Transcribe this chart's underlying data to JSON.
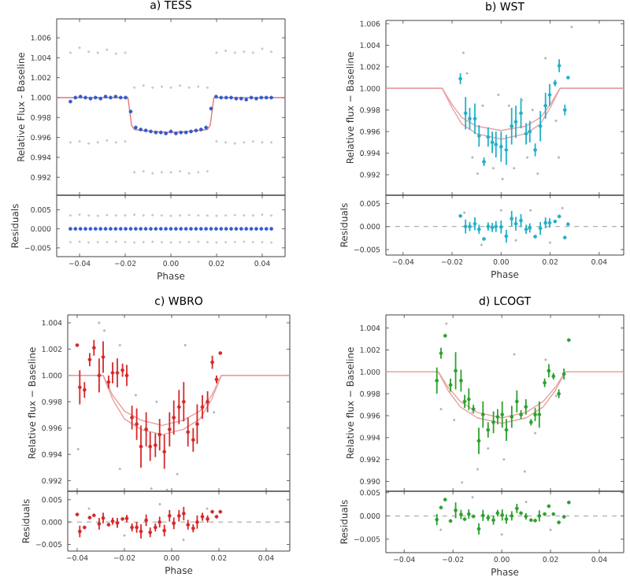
{
  "chart_data": [
    {
      "type": "scatter",
      "title": "a) TESS",
      "ylabel": "Relative Flux - Baseline",
      "tick_labels": "y",
      "xlim": [
        -0.05,
        0.05
      ],
      "ylim": [
        0.9902,
        1.0079
      ],
      "xticks": [
        {
          "value": -0.04,
          "label": null
        },
        {
          "value": -0.02,
          "label": null
        },
        {
          "value": 0,
          "label": null
        },
        {
          "value": 0.02,
          "label": null
        },
        {
          "value": 0.04,
          "label": null
        }
      ],
      "yticks": [
        {
          "value": 0.992,
          "label": "0.992"
        },
        {
          "value": 0.994,
          "label": "0.994"
        },
        {
          "value": 0.996,
          "label": "0.996"
        },
        {
          "value": 0.998,
          "label": "0.998"
        },
        {
          "value": 1.0,
          "label": "1.000"
        },
        {
          "value": 1.002,
          "label": "1.002"
        },
        {
          "value": 1.004,
          "label": "1.004"
        },
        {
          "value": 1.006,
          "label": "1.006"
        }
      ],
      "series": [
        {
          "color": "#c8c8c8",
          "x": [
            -0.044,
            -0.044,
            -0.04,
            -0.04,
            -0.036,
            -0.036,
            -0.032,
            -0.032,
            -0.028,
            -0.028,
            -0.024,
            -0.024,
            -0.02,
            -0.02,
            -0.016,
            -0.016,
            -0.012,
            -0.012,
            -0.008,
            -0.008,
            -0.004,
            -0.004,
            0.0,
            0.0,
            0.004,
            0.004,
            0.008,
            0.008,
            0.012,
            0.012,
            0.016,
            0.016,
            0.02,
            0.02,
            0.024,
            0.024,
            0.028,
            0.028,
            0.032,
            0.032,
            0.036,
            0.036,
            0.04,
            0.04,
            0.044,
            0.044
          ],
          "values": [
            1.0045,
            0.9955,
            1.005,
            0.9956,
            1.0046,
            0.9954,
            1.0045,
            0.9955,
            1.0048,
            0.9957,
            1.0044,
            0.9955,
            1.0045,
            0.9956,
            1.001,
            0.9925,
            1.0012,
            0.9926,
            1.001,
            0.9924,
            1.0011,
            0.9925,
            1.001,
            0.9925,
            1.0012,
            0.9926,
            1.001,
            0.9924,
            1.0011,
            0.9925,
            1.001,
            0.9926,
            1.0045,
            0.9956,
            1.0047,
            0.9955,
            1.0045,
            0.9954,
            1.0046,
            0.9955,
            1.0045,
            0.9956,
            1.0049,
            0.9955,
            1.0046,
            0.9955
          ]
        },
        {
          "type": "line",
          "marker": "none",
          "color": "#e07878",
          "x": [
            -0.05,
            -0.0188,
            -0.0172,
            -0.016,
            -0.008,
            0,
            0.008,
            0.016,
            0.0172,
            0.0188,
            0.05
          ],
          "values": [
            1.0,
            1.0,
            0.9972,
            0.9968,
            0.9966,
            0.9965,
            0.9966,
            0.9968,
            0.9972,
            1.0,
            1.0
          ]
        },
        {
          "color": "#2f5bd0",
          "x": [
            -0.044,
            -0.0418,
            -0.0396,
            -0.0374,
            -0.0352,
            -0.033,
            -0.0308,
            -0.0286,
            -0.0264,
            -0.0242,
            -0.022,
            -0.0198,
            -0.0176,
            -0.0154,
            -0.0132,
            -0.011,
            -0.0088,
            -0.0066,
            -0.0044,
            -0.0022,
            0,
            0.0022,
            0.0044,
            0.0066,
            0.0088,
            0.011,
            0.0132,
            0.0154,
            0.0176,
            0.0198,
            0.022,
            0.0242,
            0.0264,
            0.0286,
            0.0308,
            0.033,
            0.0352,
            0.0374,
            0.0396,
            0.0418,
            0.044
          ],
          "values": [
            0.9996,
            1.0,
            1.0001,
            1.0,
            0.9999,
            1.0,
            0.9999,
            1.0001,
            1.0,
            1.0001,
            1.0,
            1.0,
            0.9986,
            0.997,
            0.9968,
            0.9967,
            0.9966,
            0.9965,
            0.9965,
            0.9964,
            0.9966,
            0.9964,
            0.9965,
            0.9965,
            0.9966,
            0.9967,
            0.9968,
            0.997,
            0.9989,
            1.0001,
            1.0,
            1.0,
            1.0,
            0.9999,
            0.9999,
            0.9998,
            1.0,
            0.9999,
            1.0,
            1.0,
            1.0
          ]
        }
      ]
    },
    {
      "type": "scatter",
      "xlabel": "Phase",
      "ylabel": "Residuals",
      "xlim": [
        -0.05,
        0.05
      ],
      "ylim": [
        -0.0073,
        0.0088
      ],
      "xticks": [
        {
          "value": -0.04,
          "label": "−0.04"
        },
        {
          "value": -0.02,
          "label": "−0.02"
        },
        {
          "value": 0,
          "label": "0.00"
        },
        {
          "value": 0.02,
          "label": "0.02"
        },
        {
          "value": 0.04,
          "label": "0.04"
        }
      ],
      "yticks": [
        {
          "value": -0.005,
          "label": "−0.005"
        },
        {
          "value": 0,
          "label": "0.000"
        },
        {
          "value": 0.005,
          "label": "0.005"
        }
      ],
      "series": [
        {
          "color": "#c8c8c8",
          "x": [
            -0.044,
            -0.044,
            -0.04,
            -0.04,
            -0.036,
            -0.036,
            -0.032,
            -0.032,
            -0.028,
            -0.028,
            -0.024,
            -0.024,
            -0.02,
            -0.02,
            -0.016,
            -0.016,
            -0.012,
            -0.012,
            -0.008,
            -0.008,
            -0.004,
            -0.004,
            0.0,
            0.0,
            0.004,
            0.004,
            0.008,
            0.008,
            0.012,
            0.012,
            0.016,
            0.016,
            0.02,
            0.02,
            0.024,
            0.024,
            0.028,
            0.028,
            0.032,
            0.032,
            0.036,
            0.036,
            0.04,
            0.04,
            0.044,
            0.044
          ],
          "values": [
            0.0035,
            -0.0035,
            0.0037,
            -0.0034,
            0.0035,
            -0.0036,
            0.0034,
            -0.0035,
            0.0036,
            -0.0035,
            0.0035,
            -0.0034,
            0.0035,
            -0.0035,
            0.0037,
            -0.0036,
            0.0035,
            -0.0035,
            0.0036,
            -0.0034,
            0.0035,
            -0.0035,
            0.0034,
            -0.0036,
            0.0035,
            -0.0035,
            0.0036,
            -0.0035,
            0.0035,
            -0.0034,
            0.0035,
            -0.0035,
            0.0034,
            -0.0036,
            0.0035,
            -0.0035,
            0.0036,
            -0.0035,
            0.0035,
            -0.0034,
            0.0035,
            -0.0035,
            0.0037,
            -0.0035,
            0.0035,
            -0.0036
          ]
        },
        {
          "color": "#2f5bd0",
          "x": [
            -0.044,
            -0.0418,
            -0.0396,
            -0.0374,
            -0.0352,
            -0.033,
            -0.0308,
            -0.0286,
            -0.0264,
            -0.0242,
            -0.022,
            -0.0198,
            -0.0176,
            -0.0154,
            -0.0132,
            -0.011,
            -0.0088,
            -0.0066,
            -0.0044,
            -0.0022,
            0,
            0.0022,
            0.0044,
            0.0066,
            0.0088,
            0.011,
            0.0132,
            0.0154,
            0.0176,
            0.0198,
            0.022,
            0.0242,
            0.0264,
            0.0286,
            0.0308,
            0.033,
            0.0352,
            0.0374,
            0.0396,
            0.0418,
            0.044
          ],
          "values": [
            0,
            0,
            0,
            0,
            0,
            0,
            0,
            0,
            0,
            0,
            0,
            0,
            0,
            0,
            0,
            0,
            0,
            0,
            0,
            0,
            0,
            0,
            0,
            0,
            0,
            0,
            0,
            0,
            0,
            0,
            0,
            0,
            0,
            0,
            0,
            0,
            0,
            0,
            0,
            0,
            0
          ]
        }
      ]
    },
    {
      "type": "scatter",
      "title": "b) WST",
      "ylabel": "Relative flux − Baseline",
      "tick_labels": "y",
      "xlim": [
        -0.047,
        0.05
      ],
      "ylim": [
        0.9901,
        1.0063
      ],
      "xticks": [
        {
          "value": -0.04,
          "label": null
        },
        {
          "value": -0.02,
          "label": null
        },
        {
          "value": 0,
          "label": null
        },
        {
          "value": 0.02,
          "label": null
        },
        {
          "value": 0.04,
          "label": null
        }
      ],
      "yticks": [
        {
          "value": 0.992,
          "label": "0.992"
        },
        {
          "value": 0.994,
          "label": "0.994"
        },
        {
          "value": 0.996,
          "label": "0.996"
        },
        {
          "value": 0.998,
          "label": "0.998"
        },
        {
          "value": 1.0,
          "label": "1.000"
        },
        {
          "value": 1.002,
          "label": "1.002"
        },
        {
          "value": 1.004,
          "label": "1.004"
        },
        {
          "value": 1.006,
          "label": "1.006"
        }
      ],
      "series": [
        {
          "color": "#b4b4b4",
          "x": [
            -0.0154,
            -0.0139,
            -0.0117,
            -0.0096,
            -0.0075,
            -0.0032,
            -0.0011,
            0.0006,
            0.0032,
            0.0053,
            0.0085,
            0.0107,
            0.0128,
            0.0149,
            0.0181,
            0.0224,
            0.0235,
            0.0288
          ],
          "values": [
            1.0033,
            1.0014,
            0.9936,
            0.9921,
            0.9984,
            0.9926,
            0.9994,
            0.9916,
            0.9984,
            0.9926,
            0.9989,
            0.9936,
            0.998,
            0.9921,
            1.0028,
            0.997,
            0.9936,
            1.0057
          ]
        },
        {
          "type": "line",
          "marker": "none",
          "color": "#e8a0a0",
          "x": [
            -0.047,
            -0.024,
            -0.02,
            -0.016,
            -0.01,
            0,
            0.01,
            0.016,
            0.02,
            0.024,
            0.05
          ],
          "values": [
            1.0,
            1.0,
            0.9985,
            0.9973,
            0.9965,
            0.9961,
            0.9965,
            0.9973,
            0.9985,
            1.0,
            1.0
          ]
        },
        {
          "type": "line",
          "marker": "none",
          "color": "#e8a0a0",
          "x": [
            -0.047,
            -0.024,
            -0.02,
            -0.016,
            -0.01,
            0,
            0.01,
            0.016,
            0.02,
            0.024,
            0.05
          ],
          "values": [
            1.0,
            1.0,
            0.9982,
            0.9967,
            0.9958,
            0.9953,
            0.9958,
            0.9967,
            0.9982,
            1.0,
            1.0
          ]
        },
        {
          "color": "#1fb0c8",
          "x": [
            -0.0166,
            -0.0145,
            -0.0128,
            -0.0107,
            -0.009,
            -0.007,
            -0.0053,
            -0.0036,
            -0.0021,
            0.0,
            0.0021,
            0.0043,
            0.006,
            0.0081,
            0.0102,
            0.0117,
            0.0139,
            0.016,
            0.0181,
            0.0198,
            0.022,
            0.0237,
            0.026,
            0.0273
          ],
          "values": [
            1.0009,
            0.9977,
            0.9972,
            0.9972,
            0.9956,
            0.9932,
            0.9955,
            0.995,
            0.9948,
            0.9946,
            0.9943,
            0.9965,
            0.9969,
            0.9977,
            0.9958,
            0.996,
            0.9943,
            0.9965,
            0.9984,
            0.9994,
            1.0005,
            1.0021,
            0.998,
            1.001
          ],
          "errors": [
            0.0005,
            0.0015,
            0.001,
            0.0014,
            0.001,
            0.0004,
            0.0009,
            0.001,
            0.0012,
            0.0014,
            0.0014,
            0.0017,
            0.0015,
            0.0014,
            0.001,
            0.001,
            0.0006,
            0.0014,
            0.0012,
            0.001,
            0.0003,
            0.0006,
            0.0005,
            null
          ]
        }
      ]
    },
    {
      "type": "scatter",
      "xlabel": "Phase",
      "ylabel": "Residuals",
      "xlim": [
        -0.047,
        0.05
      ],
      "ylim": [
        -0.0062,
        0.0068
      ],
      "xticks": [
        {
          "value": -0.04,
          "label": "−0.04"
        },
        {
          "value": -0.02,
          "label": "−0.02"
        },
        {
          "value": 0,
          "label": "0.00"
        },
        {
          "value": 0.02,
          "label": "0.02"
        },
        {
          "value": 0.04,
          "label": "0.04"
        }
      ],
      "yticks": [
        {
          "value": -0.005,
          "label": "−0.005"
        },
        {
          "value": 0,
          "label": "0.000"
        },
        {
          "value": 0.005,
          "label": "0.005"
        }
      ],
      "ref_lines": [
        {
          "axis": "y",
          "value": 0,
          "color": "#808080",
          "line_style": "dashed"
        }
      ],
      "series": [
        {
          "color": "#b4b4b4",
          "x": [
            -0.015,
            -0.008,
            0.0,
            0.006,
            0.012,
            0.02,
            0.025
          ],
          "values": [
            0.003,
            -0.004,
            0.0035,
            -0.003,
            0.0035,
            -0.0035,
            0.004
          ]
        },
        {
          "color": "#1fb0c8",
          "x": [
            -0.0166,
            -0.0145,
            -0.0128,
            -0.0107,
            -0.009,
            -0.007,
            -0.0053,
            -0.0036,
            -0.0021,
            0.0,
            0.0021,
            0.0043,
            0.006,
            0.0081,
            0.0102,
            0.0117,
            0.0139,
            0.016,
            0.0181,
            0.0198,
            0.022,
            0.0237,
            0.026,
            0.0273
          ],
          "values": [
            0.0023,
            0.0,
            0.0,
            0.0006,
            -0.0006,
            -0.0027,
            0.0,
            -0.0002,
            0.0,
            -0.0001,
            -0.0021,
            0.0017,
            0.0006,
            0.0013,
            -0.0006,
            -0.0003,
            -0.0022,
            -0.0004,
            0.0008,
            0.0008,
            0.0011,
            0.0022,
            -0.0024,
            0.0005
          ],
          "errors": [
            null,
            0.0015,
            0.001,
            0.0014,
            0.001,
            null,
            0.0009,
            0.001,
            0.0012,
            0.0014,
            0.0014,
            0.0017,
            0.0015,
            0.0014,
            0.001,
            0.001,
            null,
            0.0014,
            0.0012,
            0.001,
            null,
            null,
            null,
            null
          ]
        }
      ]
    },
    {
      "type": "scatter",
      "title": "c) WBRO",
      "ylabel": "Relative flux − Baseline",
      "tick_labels": "y",
      "xlim": [
        -0.044,
        0.05
      ],
      "ylim": [
        0.9912,
        1.0046
      ],
      "xticks": [
        {
          "value": -0.04,
          "label": null
        },
        {
          "value": -0.02,
          "label": null
        },
        {
          "value": 0,
          "label": null
        },
        {
          "value": 0.02,
          "label": null
        },
        {
          "value": 0.04,
          "label": null
        }
      ],
      "yticks": [
        {
          "value": 0.992,
          "label": "0.992"
        },
        {
          "value": 0.994,
          "label": "0.994"
        },
        {
          "value": 0.996,
          "label": "0.996"
        },
        {
          "value": 0.998,
          "label": "0.998"
        },
        {
          "value": 1.0,
          "label": "1.000"
        },
        {
          "value": 1.002,
          "label": "1.002"
        },
        {
          "value": 1.004,
          "label": "1.004"
        }
      ],
      "series": [
        {
          "color": "#b4b4b4",
          "x": [
            -0.0307,
            -0.0285,
            -0.0219,
            -0.0396,
            -0.0152,
            -0.0064,
            -0.002,
            0.0057,
            -0.0086,
            0.0179,
            -0.0219,
            0.0024
          ],
          "values": [
            1.004,
            1.0034,
            1.0023,
            0.9944,
            0.9985,
            0.998,
            0.9913,
            1.0023,
            0.9914,
            0.9972,
            0.9929,
            0.9925
          ]
        },
        {
          "type": "line",
          "marker": "none",
          "color": "#e8a0a0",
          "x": [
            -0.044,
            -0.029,
            -0.025,
            -0.02,
            -0.013,
            -0.004,
            0.005,
            0.012,
            0.017,
            0.021,
            0.05
          ],
          "values": [
            1.0,
            1.0,
            0.9985,
            0.9973,
            0.9966,
            0.9962,
            0.9966,
            0.9973,
            0.9985,
            1.0,
            1.0
          ]
        },
        {
          "type": "line",
          "marker": "none",
          "color": "#e8a0a0",
          "x": [
            -0.044,
            -0.029,
            -0.025,
            -0.02,
            -0.013,
            -0.004,
            0.005,
            0.012,
            0.017,
            0.021,
            0.05
          ],
          "values": [
            1.0,
            1.0,
            0.9982,
            0.9967,
            0.9959,
            0.9955,
            0.9959,
            0.9967,
            0.9982,
            1.0,
            1.0
          ]
        },
        {
          "color": "#d62728",
          "x": [
            -0.04,
            -0.0389,
            -0.0369,
            -0.0347,
            -0.0329,
            -0.0307,
            -0.029,
            -0.0267,
            -0.025,
            -0.023,
            -0.0208,
            -0.019,
            -0.0168,
            -0.0148,
            -0.013,
            -0.0108,
            -0.0091,
            -0.0069,
            -0.0051,
            -0.0031,
            -0.0009,
            0.0009,
            0.0031,
            0.0051,
            0.0069,
            0.0091,
            0.0108,
            0.013,
            0.0152,
            0.0172,
            0.019,
            0.0206
          ],
          "values": [
            1.0023,
            0.9991,
            0.9989,
            1.0012,
            1.0021,
            1.0,
            1.0014,
            0.9995,
            1.0002,
            1.0002,
            1.0004,
            1.0,
            0.9968,
            0.9963,
            0.9946,
            0.9959,
            0.9946,
            0.9947,
            0.9955,
            0.9942,
            0.9959,
            0.9968,
            0.9976,
            0.998,
            0.9957,
            0.9951,
            0.9963,
            0.9976,
            0.998,
            1.001,
            0.9997,
            1.0017
          ],
          "errors": [
            null,
            0.0013,
            0.0006,
            0.0005,
            0.0006,
            0.0013,
            0.0012,
            0.0005,
            0.0008,
            0.0011,
            0.0005,
            0.0008,
            0.0009,
            0.0012,
            0.0016,
            0.0013,
            0.0011,
            0.0009,
            0.0012,
            0.0013,
            0.0013,
            0.0013,
            0.0013,
            0.0015,
            0.0011,
            0.0009,
            0.0015,
            0.0009,
            0.0008,
            0.0005,
            0.0003,
            null
          ]
        }
      ]
    },
    {
      "type": "scatter",
      "xlabel": "Phase",
      "ylabel": "Residuals",
      "xlim": [
        -0.044,
        0.05
      ],
      "ylim": [
        -0.0065,
        0.0069
      ],
      "xticks": [
        {
          "value": -0.04,
          "label": "−0.04"
        },
        {
          "value": -0.02,
          "label": "−0.02"
        },
        {
          "value": 0,
          "label": "0.00"
        },
        {
          "value": 0.02,
          "label": "0.02"
        },
        {
          "value": 0.04,
          "label": "0.04"
        }
      ],
      "yticks": [
        {
          "value": -0.005,
          "label": "−0.005"
        },
        {
          "value": 0,
          "label": "0.000"
        },
        {
          "value": 0.005,
          "label": "0.005"
        }
      ],
      "ref_lines": [
        {
          "axis": "y",
          "value": 0,
          "color": "#808080",
          "line_style": "dashed"
        }
      ],
      "series": [
        {
          "color": "#b4b4b4",
          "x": [
            -0.035,
            -0.02,
            -0.005,
            0.005,
            0.015
          ],
          "values": [
            0.003,
            -0.003,
            0.004,
            -0.004,
            0.003
          ]
        },
        {
          "color": "#d62728",
          "x": [
            -0.04,
            -0.0389,
            -0.0369,
            -0.0347,
            -0.0329,
            -0.0307,
            -0.029,
            -0.0267,
            -0.025,
            -0.023,
            -0.0208,
            -0.019,
            -0.0168,
            -0.0148,
            -0.013,
            -0.0108,
            -0.0091,
            -0.0069,
            -0.0051,
            -0.0031,
            -0.0009,
            0.0009,
            0.0031,
            0.0051,
            0.0069,
            0.0091,
            0.0108,
            0.013,
            0.0152,
            0.0172,
            0.019,
            0.0206
          ],
          "values": [
            0.0017,
            -0.0021,
            -0.0012,
            0.001,
            0.0015,
            -0.0004,
            0.0009,
            -0.0006,
            0.0002,
            -0.0002,
            0.0007,
            0.0008,
            -0.0012,
            -0.0012,
            -0.0021,
            0.0004,
            -0.0023,
            -0.0012,
            0.0,
            -0.0019,
            0.0014,
            -0.0003,
            0.0014,
            0.0019,
            -0.0006,
            -0.0014,
            0.0,
            0.0012,
            0.0007,
            0.0023,
            0.0012,
            0.0023
          ],
          "errors": [
            null,
            0.0013,
            null,
            null,
            null,
            0.0013,
            0.0012,
            null,
            0.0008,
            0.0011,
            null,
            0.0008,
            0.0009,
            0.0012,
            0.0016,
            0.0013,
            0.0011,
            0.0009,
            0.0012,
            0.0013,
            0.0013,
            0.0013,
            0.0013,
            0.0015,
            0.0011,
            0.0009,
            0.0015,
            0.0009,
            0.0008,
            null,
            null,
            null
          ]
        }
      ]
    },
    {
      "type": "scatter",
      "title": "d) LCOGT",
      "ylabel": "Relative flux − Baseline",
      "tick_labels": "y",
      "xlim": [
        -0.0475,
        0.05
      ],
      "ylim": [
        0.9891,
        1.0052
      ],
      "xticks": [
        {
          "value": -0.04,
          "label": null
        },
        {
          "value": -0.02,
          "label": null
        },
        {
          "value": 0,
          "label": null
        },
        {
          "value": 0.02,
          "label": null
        },
        {
          "value": 0.04,
          "label": null
        }
      ],
      "yticks": [
        {
          "value": 0.99,
          "label": "0.990"
        },
        {
          "value": 0.992,
          "label": "0.992"
        },
        {
          "value": 0.994,
          "label": "0.994"
        },
        {
          "value": 0.996,
          "label": "0.996"
        },
        {
          "value": 0.998,
          "label": "0.998"
        },
        {
          "value": 1.0,
          "label": "1.000"
        },
        {
          "value": 1.002,
          "label": "1.002"
        },
        {
          "value": 1.004,
          "label": "1.004"
        }
      ],
      "series": [
        {
          "color": "#b4b4b4",
          "x": [
            -0.0227,
            -0.0249,
            -0.0195,
            -0.012,
            -0.0099,
            -0.0056,
            0.0009,
            0.0051,
            0.0094,
            0.0137,
            0.018,
            0.0223,
            -0.0163
          ],
          "values": [
            1.0044,
            0.9966,
            0.9956,
            0.9963,
            0.9911,
            0.993,
            0.992,
            1.0016,
            0.9909,
            0.9944,
            1.0011,
            0.9978,
            0.9899
          ]
        },
        {
          "type": "line",
          "marker": "none",
          "color": "#e8a0a0",
          "x": [
            -0.0475,
            -0.026,
            -0.022,
            -0.017,
            -0.01,
            0,
            0.01,
            0.017,
            0.022,
            0.026,
            0.05
          ],
          "values": [
            1.0,
            1.0,
            0.9986,
            0.9973,
            0.9963,
            0.9958,
            0.9963,
            0.9973,
            0.9986,
            1.0,
            1.0
          ]
        },
        {
          "type": "line",
          "marker": "none",
          "color": "#e8a0a0",
          "x": [
            -0.0475,
            -0.026,
            -0.022,
            -0.017,
            -0.01,
            0,
            0.01,
            0.017,
            0.022,
            0.026,
            0.05
          ],
          "values": [
            1.0,
            1.0,
            0.9983,
            0.9968,
            0.9958,
            0.9953,
            0.9958,
            0.9968,
            0.9983,
            1.0,
            1.0
          ]
        },
        {
          "color": "#2ca02c",
          "x": [
            -0.0266,
            -0.0249,
            -0.0232,
            -0.021,
            -0.0189,
            -0.0167,
            -0.0152,
            -0.0135,
            -0.0116,
            -0.0094,
            -0.0077,
            -0.0056,
            -0.0034,
            -0.0017,
            0.0002,
            0.0019,
            0.0041,
            0.0062,
            0.0079,
            0.0099,
            0.012,
            0.0137,
            0.0154,
            0.0176,
            0.0193,
            0.0212,
            0.0234,
            0.0255,
            0.0275
          ],
          "values": [
            0.9992,
            1.0017,
            1.0033,
            0.9988,
            1.0001,
            0.9992,
            0.9973,
            0.9975,
            0.9966,
            0.9937,
            0.9961,
            0.9947,
            0.9954,
            0.9959,
            0.9961,
            0.9947,
            0.9959,
            0.9973,
            0.9961,
            0.9968,
            0.9954,
            0.9961,
            0.9961,
            0.999,
            1.0001,
            0.9996,
            0.998,
            0.9998,
            1.0029
          ],
          "errors": [
            0.0012,
            0.0005,
            null,
            0.0006,
            0.0017,
            0.001,
            0.0006,
            0.001,
            0.0004,
            0.0012,
            0.0012,
            0.0007,
            0.001,
            0.0007,
            0.0012,
            0.001,
            0.001,
            0.001,
            0.0004,
            0.0007,
            0.0003,
            0.0006,
            0.0012,
            0.0004,
            0.0006,
            0.0003,
            0.0004,
            0.0005,
            null
          ]
        }
      ]
    },
    {
      "type": "scatter",
      "xlabel": "Phase",
      "ylabel": "Residuals",
      "xlim": [
        -0.0475,
        0.05
      ],
      "ylim": [
        -0.0079,
        0.0053
      ],
      "xticks": [
        {
          "value": -0.04,
          "label": "−0.04"
        },
        {
          "value": -0.02,
          "label": "−0.02"
        },
        {
          "value": 0,
          "label": "0.00"
        },
        {
          "value": 0.02,
          "label": "0.02"
        },
        {
          "value": 0.04,
          "label": "0.04"
        }
      ],
      "yticks": [
        {
          "value": -0.005,
          "label": "−0.005"
        },
        {
          "value": 0,
          "label": "0.000"
        },
        {
          "value": 0.005,
          "label": "0.005"
        }
      ],
      "ref_lines": [
        {
          "axis": "y",
          "value": 0,
          "color": "#808080",
          "line_style": "dashed"
        }
      ],
      "series": [
        {
          "color": "#b4b4b4",
          "x": [
            -0.025,
            -0.012,
            0.0,
            0.01,
            0.02
          ],
          "values": [
            -0.003,
            0.004,
            -0.004,
            0.003,
            -0.003
          ]
        },
        {
          "color": "#2ca02c",
          "x": [
            -0.0266,
            -0.0249,
            -0.0232,
            -0.021,
            -0.0189,
            -0.0167,
            -0.0152,
            -0.0135,
            -0.0116,
            -0.0094,
            -0.0077,
            -0.0056,
            -0.0034,
            -0.0017,
            0.0002,
            0.0019,
            0.0041,
            0.0062,
            0.0079,
            0.0099,
            0.012,
            0.0137,
            0.0154,
            0.0176,
            0.0193,
            0.0212,
            0.0234,
            0.0255,
            0.0275
          ],
          "values": [
            -0.0008,
            0.0018,
            0.0035,
            -0.0011,
            0.0012,
            0.0003,
            -0.0007,
            0.0004,
            -0.0001,
            -0.0028,
            0.0001,
            -0.0004,
            -0.0009,
            0.0006,
            0.0002,
            -0.0007,
            0.0,
            0.0016,
            0.0006,
            -0.0001,
            -0.0009,
            -0.001,
            0.0,
            0.0004,
            0.0021,
            0.0004,
            -0.0014,
            -0.0002,
            0.0029
          ],
          "errors": [
            0.0012,
            null,
            null,
            null,
            0.0017,
            0.001,
            null,
            0.001,
            null,
            0.0012,
            0.0012,
            0.0007,
            0.001,
            0.0007,
            0.0012,
            0.001,
            0.001,
            0.001,
            null,
            0.0007,
            null,
            null,
            0.0012,
            null,
            null,
            null,
            null,
            null,
            null
          ]
        }
      ]
    }
  ]
}
